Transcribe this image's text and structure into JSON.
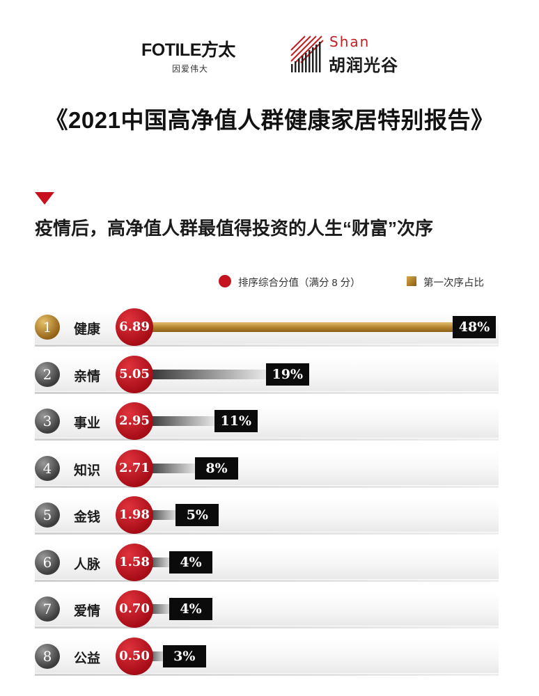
{
  "logos": {
    "fotile_name": "FOTILE方太",
    "fotile_slogan": "因爱伟大",
    "shan_en": "Shan",
    "shan_cn": "胡润光谷"
  },
  "report_title": "《2021中国高净值人群健康家居特别报告》",
  "chart_data": {
    "type": "bar",
    "title": "疫情后，高净值人群最值得投资的人生“财富”次序",
    "legend": [
      {
        "name": "排序综合分值（满分 8 分）",
        "color": "#c41420",
        "marker": "circle"
      },
      {
        "name": "第一次序占比",
        "color": "#b58530",
        "marker": "square"
      }
    ],
    "legend_position": "top-right",
    "ranks": [
      "1",
      "2",
      "3",
      "4",
      "5",
      "6",
      "7",
      "8"
    ],
    "categories": [
      "健康",
      "亲情",
      "事业",
      "知识",
      "金钱",
      "人脉",
      "爱情",
      "公益"
    ],
    "scores": [
      "6.89",
      "5.05",
      "2.95",
      "2.71",
      "1.98",
      "1.58",
      "0.70",
      "0.50"
    ],
    "series": [
      {
        "name": "第一次序占比",
        "values": [
          48,
          19,
          11,
          8,
          5,
          4,
          4,
          3
        ],
        "labels": [
          "48%",
          "19%",
          "11%",
          "8%",
          "5%",
          "4%",
          "4%",
          "3%"
        ]
      }
    ],
    "ylim": [
      0,
      48
    ],
    "highlight_color": "#b58530",
    "bar_color": "#555555",
    "score_color": "#c41420"
  }
}
